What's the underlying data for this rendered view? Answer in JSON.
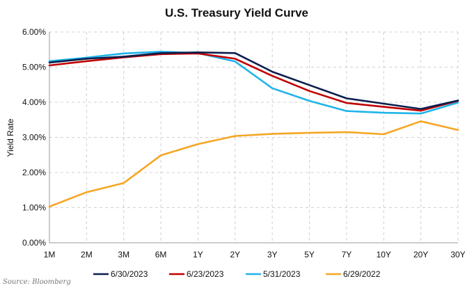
{
  "chart_data": {
    "type": "line",
    "title": "U.S. Treasury Yield Curve",
    "xlabel": "",
    "ylabel": "Yield Rate",
    "categories": [
      "1M",
      "2M",
      "3M",
      "6M",
      "1Y",
      "2Y",
      "3Y",
      "5Y",
      "7Y",
      "10Y",
      "20Y",
      "30Y"
    ],
    "ylim": [
      0,
      6
    ],
    "yticks": [
      "0.00%",
      "1.00%",
      "2.00%",
      "3.00%",
      "4.00%",
      "5.00%",
      "6.00%"
    ],
    "grid": true,
    "legend_position": "bottom",
    "series": [
      {
        "name": "6/30/2023",
        "color": "#0b1f4d",
        "values": [
          5.13,
          5.24,
          5.3,
          5.4,
          5.42,
          5.4,
          4.87,
          4.49,
          4.11,
          3.96,
          3.81,
          4.05
        ]
      },
      {
        "name": "6/23/2023",
        "color": "#c00000",
        "values": [
          5.05,
          5.17,
          5.28,
          5.37,
          5.39,
          5.24,
          4.75,
          4.32,
          3.98,
          3.87,
          3.76,
          4.04
        ]
      },
      {
        "name": "5/31/2023",
        "color": "#1fb4ea",
        "values": [
          5.17,
          5.27,
          5.39,
          5.44,
          5.4,
          5.16,
          4.4,
          4.04,
          3.75,
          3.7,
          3.68,
          3.99
        ]
      },
      {
        "name": "6/29/2022",
        "color": "#f5a623",
        "values": [
          1.03,
          1.44,
          1.7,
          2.49,
          2.81,
          3.04,
          3.1,
          3.13,
          3.15,
          3.09,
          3.46,
          3.21
        ]
      }
    ],
    "source": "Source: Bloomberg"
  }
}
